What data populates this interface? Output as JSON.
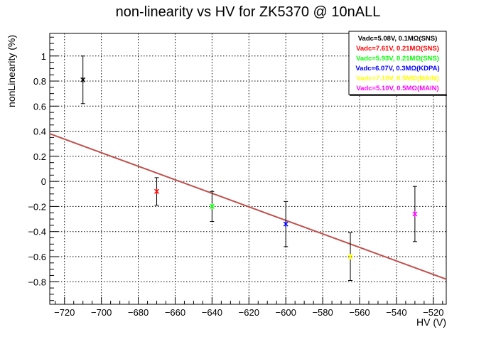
{
  "chart_data": {
    "type": "scatter",
    "title": "non-linearity vs HV for ZK5370 @ 10nALL",
    "xlabel": "HV (V)",
    "ylabel": "nonLinearity (%)",
    "xlim": [
      -728,
      -513
    ],
    "ylim": [
      -0.98,
      1.18
    ],
    "x_ticks": [
      -720,
      -700,
      -680,
      -660,
      -640,
      -620,
      -600,
      -580,
      -560,
      -540,
      -520
    ],
    "y_ticks": [
      -0.8,
      -0.6,
      -0.4,
      -0.2,
      0,
      0.2,
      0.4,
      0.6,
      0.8,
      1
    ],
    "grid": true,
    "legend_position": "top-right",
    "series": [
      {
        "name": "Vadc=5.08V, 0.1MΩ(SNS)",
        "color": "#000000",
        "x": -710,
        "y": 0.81,
        "err": 0.19
      },
      {
        "name": "Vadc=7.61V, 0.21MΩ(SNS)",
        "color": "#ff0000",
        "x": -670,
        "y": -0.08,
        "err": 0.11
      },
      {
        "name": "Vadc=5.93V, 0.21MΩ(SNS)",
        "color": "#00ff00",
        "x": -640,
        "y": -0.2,
        "err": 0.12
      },
      {
        "name": "Vadc=6.07V, 0.3MΩ(KDPA)",
        "color": "#0000ff",
        "x": -600,
        "y": -0.34,
        "err": 0.18
      },
      {
        "name": "Vadc=7.10V, 0.5MΩ(MAIN)",
        "color": "#ffff00",
        "x": -565,
        "y": -0.6,
        "err": 0.19
      },
      {
        "name": "Vadc=5.10V, 0.5MΩ(MAIN)",
        "color": "#ff00ff",
        "x": -530,
        "y": -0.26,
        "err": 0.22
      }
    ],
    "fit_line": {
      "color": "#c0504d",
      "x": [
        -728,
        -513
      ],
      "y": [
        0.38,
        -0.78
      ]
    }
  }
}
